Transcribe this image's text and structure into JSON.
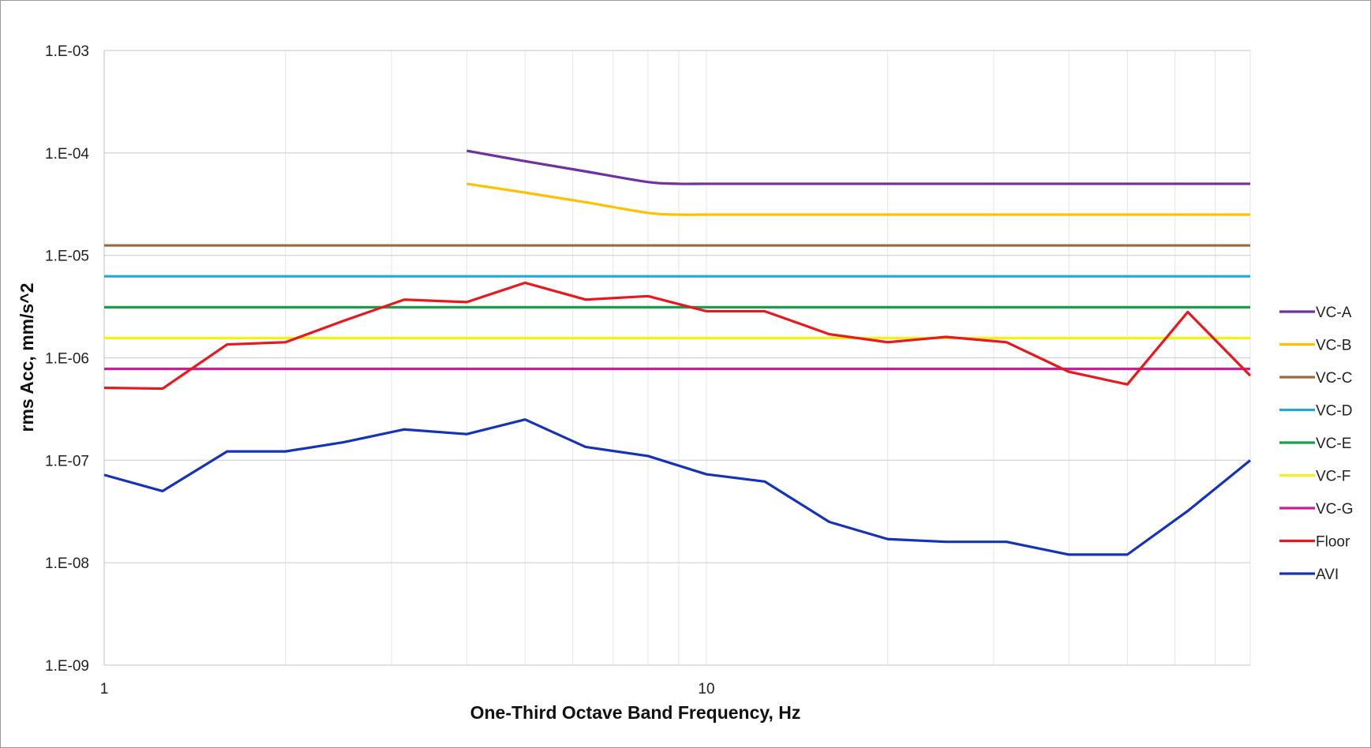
{
  "chart_data": {
    "type": "line",
    "xlabel": "One-Third Octave Band Frequency, Hz",
    "ylabel": "rms Acc, mm/s^2",
    "x_scale": "log",
    "y_scale": "log",
    "xlim": [
      1,
      80
    ],
    "ylim": [
      1e-09,
      0.001
    ],
    "x_tick_labels": [
      {
        "value": 1,
        "label": "1"
      },
      {
        "value": 10,
        "label": "10"
      }
    ],
    "y_tick_labels": [
      {
        "value": 0.001,
        "label": "1.E-03"
      },
      {
        "value": 0.0001,
        "label": "1.E-04"
      },
      {
        "value": 1e-05,
        "label": "1.E-05"
      },
      {
        "value": 1e-06,
        "label": "1.E-06"
      },
      {
        "value": 1e-07,
        "label": "1.E-07"
      },
      {
        "value": 1e-08,
        "label": "1.E-08"
      },
      {
        "value": 1e-09,
        "label": "1.E-09"
      }
    ],
    "grid": {
      "horizontal": true,
      "vertical_minor": true
    },
    "legend_position": "right",
    "series": [
      {
        "name": "VC-A",
        "color": "#7030a0",
        "smooth": true,
        "x": [
          4,
          5,
          6.3,
          8,
          9,
          10,
          12.5,
          16,
          20,
          25,
          31.5,
          40,
          50,
          63,
          80
        ],
        "y": [
          0.000105,
          8.3e-05,
          6.6e-05,
          5.2e-05,
          5e-05,
          5e-05,
          5e-05,
          5e-05,
          5e-05,
          5e-05,
          5e-05,
          5e-05,
          5e-05,
          5e-05,
          5e-05
        ]
      },
      {
        "name": "VC-B",
        "color": "#ffc000",
        "smooth": true,
        "x": [
          4,
          5,
          6.3,
          8,
          9,
          10,
          12.5,
          16,
          20,
          25,
          31.5,
          40,
          50,
          63,
          80
        ],
        "y": [
          5e-05,
          4.1e-05,
          3.3e-05,
          2.6e-05,
          2.5e-05,
          2.5e-05,
          2.5e-05,
          2.5e-05,
          2.5e-05,
          2.5e-05,
          2.5e-05,
          2.5e-05,
          2.5e-05,
          2.5e-05,
          2.5e-05
        ]
      },
      {
        "name": "VC-C",
        "color": "#9c6a3a",
        "smooth": false,
        "x": [
          1,
          80
        ],
        "y": [
          1.25e-05,
          1.25e-05
        ]
      },
      {
        "name": "VC-D",
        "color": "#1aabd8",
        "smooth": false,
        "x": [
          1,
          80
        ],
        "y": [
          6.25e-06,
          6.25e-06
        ]
      },
      {
        "name": "VC-E",
        "color": "#1a9e4a",
        "smooth": false,
        "x": [
          1,
          80
        ],
        "y": [
          3.12e-06,
          3.12e-06
        ]
      },
      {
        "name": "VC-F",
        "color": "#f4f11a",
        "smooth": false,
        "x": [
          1,
          80
        ],
        "y": [
          1.56e-06,
          1.56e-06
        ]
      },
      {
        "name": "VC-G",
        "color": "#cc1f96",
        "smooth": false,
        "x": [
          1,
          80
        ],
        "y": [
          7.8e-07,
          7.8e-07
        ]
      },
      {
        "name": "Floor",
        "color": "#e8191e",
        "smooth": false,
        "x": [
          1,
          1.25,
          1.6,
          2,
          2.5,
          3.15,
          4,
          5,
          6.3,
          8,
          10,
          12.5,
          16,
          20,
          25,
          31.5,
          40,
          50,
          63,
          80
        ],
        "y": [
          5.1e-07,
          5e-07,
          1.35e-06,
          1.42e-06,
          2.3e-06,
          3.7e-06,
          3.5e-06,
          5.4e-06,
          3.7e-06,
          4e-06,
          2.85e-06,
          2.85e-06,
          1.7e-06,
          1.42e-06,
          1.6e-06,
          1.42e-06,
          7.3e-07,
          5.5e-07,
          2.8e-06,
          6.7e-07
        ]
      },
      {
        "name": "AVI",
        "color": "#1533b8",
        "smooth": false,
        "x": [
          1,
          1.25,
          1.6,
          2,
          2.5,
          3.15,
          4,
          5,
          6.3,
          8,
          10,
          12.5,
          16,
          20,
          25,
          31.5,
          40,
          50,
          63,
          80
        ],
        "y": [
          7.2e-08,
          5e-08,
          1.22e-07,
          1.22e-07,
          1.5e-07,
          2e-07,
          1.8e-07,
          2.5e-07,
          1.35e-07,
          1.1e-07,
          7.3e-08,
          6.2e-08,
          2.5e-08,
          1.7e-08,
          1.6e-08,
          1.6e-08,
          1.2e-08,
          1.2e-08,
          3.2e-08,
          1e-07
        ]
      }
    ]
  }
}
